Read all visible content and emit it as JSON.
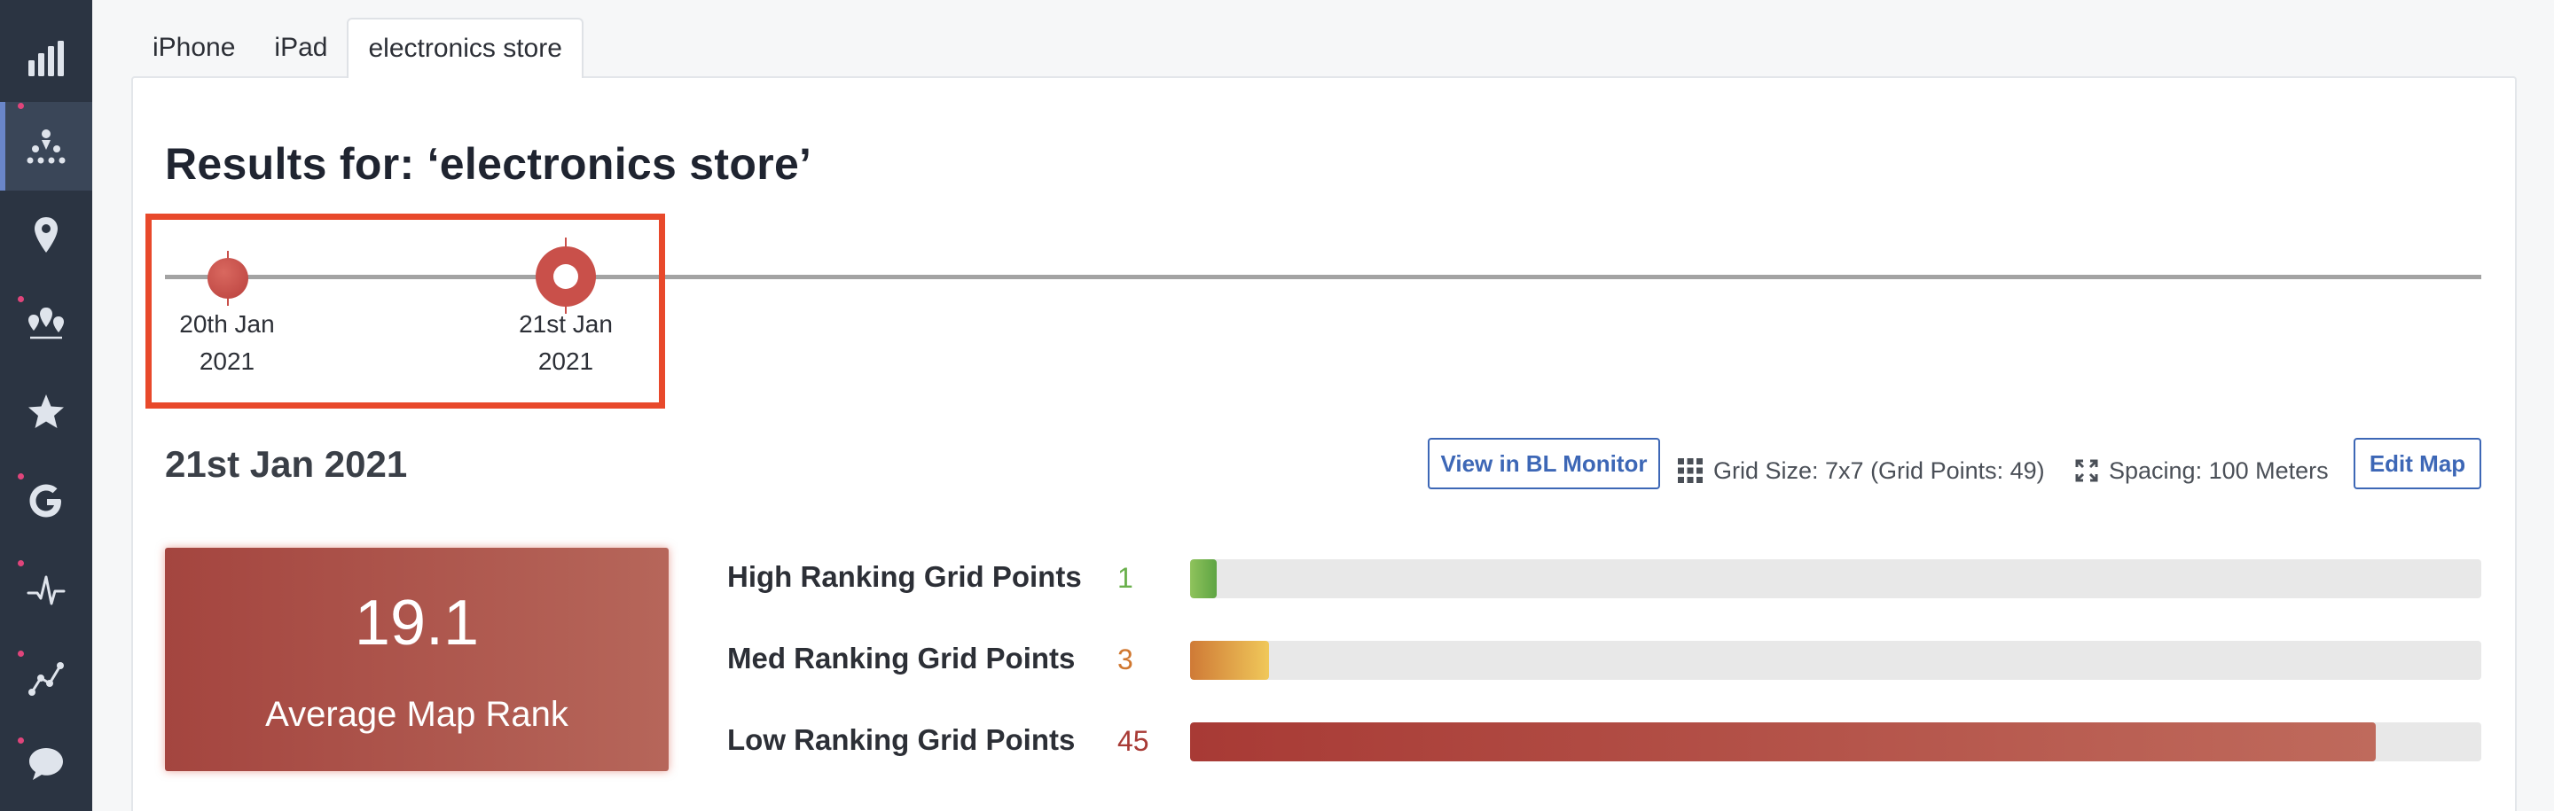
{
  "sidebar": {
    "items": [
      {
        "icon": "bar-chart-icon"
      },
      {
        "icon": "grid-rank-icon",
        "active": true
      },
      {
        "icon": "map-pin-icon"
      },
      {
        "icon": "multi-pin-icon"
      },
      {
        "icon": "star-icon"
      },
      {
        "icon": "google-icon"
      },
      {
        "icon": "pulse-icon"
      },
      {
        "icon": "trend-line-icon"
      },
      {
        "icon": "chat-bubble-icon"
      }
    ]
  },
  "tabs": [
    {
      "label": "iPhone"
    },
    {
      "label": "iPad"
    },
    {
      "label": "electronics store",
      "active": true
    }
  ],
  "title": "Results for: ‘electronics store’",
  "timeline": {
    "points": [
      {
        "line1": "20th Jan",
        "line2": "2021"
      },
      {
        "line1": "21st Jan",
        "line2": "2021",
        "selected": true
      }
    ]
  },
  "section": {
    "date": "21st Jan 2021",
    "view_button": "View in BL Monitor",
    "grid_size": "Grid Size: 7x7 (Grid Points: 49)",
    "spacing": "Spacing: 100 Meters",
    "edit_button": "Edit Map"
  },
  "rank_card": {
    "value": "19.1",
    "label": "Average Map Rank"
  },
  "rankings": [
    {
      "label": "High Ranking Grid Points",
      "count": "1",
      "fraction": 0.0204,
      "color": "#6ab04c"
    },
    {
      "label": "Med Ranking Grid Points",
      "count": "3",
      "fraction": 0.0612,
      "color": "#d0772f"
    },
    {
      "label": "Low Ranking Grid Points",
      "count": "45",
      "fraction": 0.918,
      "color": "#a83a35"
    }
  ]
}
